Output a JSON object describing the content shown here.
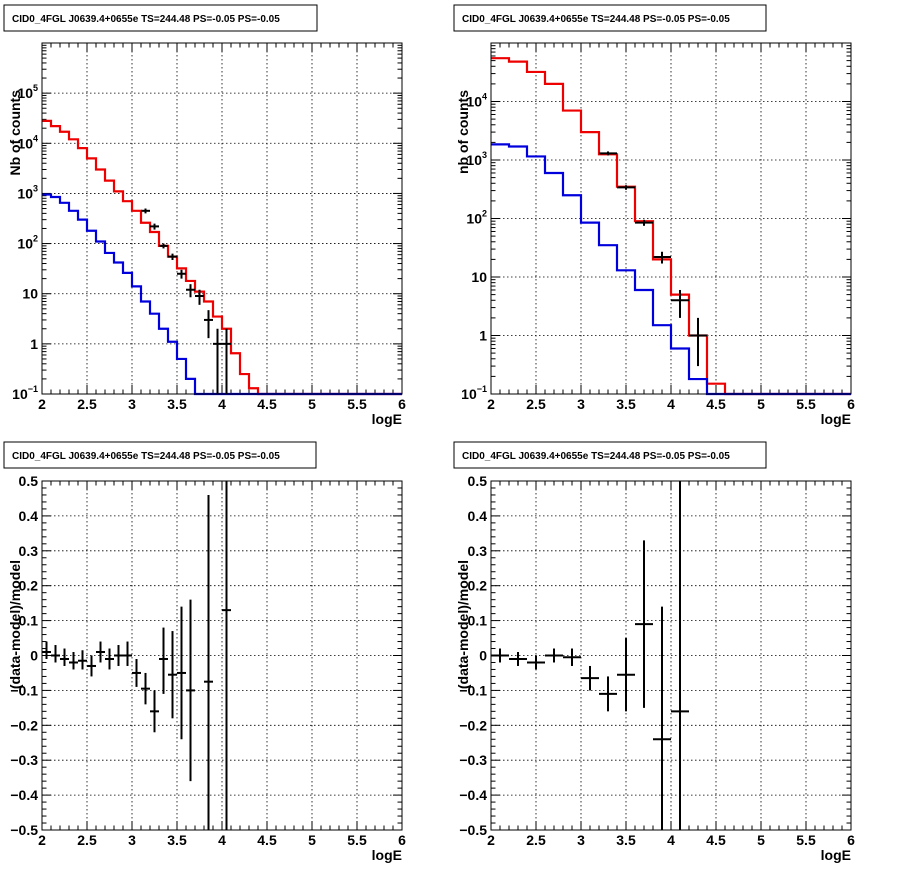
{
  "colors": {
    "model": "#ee0000",
    "component": "#0000dd",
    "data": "#000000"
  },
  "chart_data": [
    {
      "type": "line",
      "title": "CID0_4FGL J0639.4+0655e TS=244.48 PS=-0.05 PS=-0.05",
      "xlabel": "logE",
      "ylabel": "Nb of counts",
      "ylog": true,
      "xlim": [
        2,
        6
      ],
      "ylim": [
        0.1,
        1000000
      ],
      "grid": true,
      "xticks": [
        "2",
        "2.5",
        "3",
        "3.5",
        "4",
        "4.5",
        "5",
        "5.5",
        "6"
      ],
      "yticks": [
        {
          "v": 0.1,
          "label": "10",
          "exp": "−1"
        },
        {
          "v": 1,
          "label": "1"
        },
        {
          "v": 10,
          "label": "10"
        },
        {
          "v": 100,
          "label": "10",
          "exp": "2"
        },
        {
          "v": 1000,
          "label": "10",
          "exp": "3"
        },
        {
          "v": 10000,
          "label": "10",
          "exp": "4"
        },
        {
          "v": 100000,
          "label": "10",
          "exp": "5"
        }
      ],
      "series": [
        {
          "role": "model",
          "color": "#ee0000",
          "edges": [
            2,
            2.1,
            2.2,
            2.3,
            2.4,
            2.5,
            2.6,
            2.7,
            2.8,
            2.9,
            3,
            3.1,
            3.2,
            3.3,
            3.4,
            3.5,
            3.6,
            3.7,
            3.8,
            3.9,
            4,
            4.1,
            4.2,
            4.3,
            4.4,
            4.5,
            4.6,
            4.7,
            4.8,
            4.9,
            5,
            5.1,
            5.2,
            5.3,
            5.4,
            5.5,
            5.6,
            5.7,
            5.8,
            5.9,
            6
          ],
          "values": [
            28000,
            22000,
            17000,
            12000,
            8000,
            5000,
            3000,
            1800,
            1100,
            700,
            450,
            260,
            170,
            90,
            55,
            32,
            18,
            11,
            7,
            3.5,
            2,
            0.65,
            0.25,
            0.13,
            0.1,
            0.1,
            0.1,
            0.1,
            0.1,
            0.1,
            0.1,
            0.1,
            0.1,
            0.1,
            0.1,
            0.1,
            0.1,
            0.1,
            0.1,
            0.1
          ]
        },
        {
          "role": "component",
          "color": "#0000dd",
          "edges": [
            2,
            2.1,
            2.2,
            2.3,
            2.4,
            2.5,
            2.6,
            2.7,
            2.8,
            2.9,
            3,
            3.1,
            3.2,
            3.3,
            3.4,
            3.5,
            3.6,
            3.7,
            3.8,
            3.9,
            4,
            4.1,
            4.2,
            4.3,
            4.4,
            4.5,
            4.6,
            4.7,
            4.8,
            4.9,
            5,
            5.1,
            5.2,
            5.3,
            5.4,
            5.5,
            5.6,
            5.7,
            5.8,
            5.9,
            6
          ],
          "values": [
            950,
            850,
            650,
            450,
            300,
            180,
            110,
            65,
            42,
            26,
            14,
            7,
            4,
            2,
            1.1,
            0.5,
            0.2,
            0.1,
            0.1,
            0.1,
            0.1,
            0.1,
            0.1,
            0.1,
            0.1,
            0.1,
            0.1,
            0.1,
            0.1,
            0.1,
            0.1,
            0.1,
            0.1,
            0.1,
            0.1,
            0.1,
            0.1,
            0.1,
            0.1,
            0.1
          ]
        }
      ],
      "points": [
        {
          "x": 3.15,
          "y": 450,
          "xe": 0.05,
          "yl": 400,
          "yh": 500
        },
        {
          "x": 3.25,
          "y": 220,
          "xe": 0.05,
          "yl": 190,
          "yh": 250
        },
        {
          "x": 3.35,
          "y": 90,
          "xe": 0.05,
          "yl": 80,
          "yh": 100
        },
        {
          "x": 3.45,
          "y": 55,
          "xe": 0.05,
          "yl": 47,
          "yh": 63
        },
        {
          "x": 3.55,
          "y": 25,
          "xe": 0.05,
          "yl": 20,
          "yh": 30
        },
        {
          "x": 3.65,
          "y": 12,
          "xe": 0.05,
          "yl": 8.5,
          "yh": 15.5
        },
        {
          "x": 3.75,
          "y": 9,
          "xe": 0.05,
          "yl": 6,
          "yh": 12
        },
        {
          "x": 3.85,
          "y": 3,
          "xe": 0.05,
          "yl": 1.3,
          "yh": 4.7
        },
        {
          "x": 3.95,
          "y": 1,
          "xe": 0.05,
          "yl": 0.1,
          "yh": 2
        },
        {
          "x": 4.05,
          "y": 1,
          "xe": 0.05,
          "yl": 0.1,
          "yh": 2
        }
      ]
    },
    {
      "type": "line",
      "title": "CID0_4FGL J0639.4+0655e TS=244.48 PS=-0.05 PS=-0.05",
      "xlabel": "logE",
      "ylabel": "nb of counts",
      "ylog": true,
      "xlim": [
        2,
        6
      ],
      "ylim": [
        0.1,
        100000
      ],
      "grid": true,
      "xticks": [
        "2",
        "2.5",
        "3",
        "3.5",
        "4",
        "4.5",
        "5",
        "5.5",
        "6"
      ],
      "yticks": [
        {
          "v": 0.1,
          "label": "10",
          "exp": "−1"
        },
        {
          "v": 1,
          "label": "1"
        },
        {
          "v": 10,
          "label": "10"
        },
        {
          "v": 100,
          "label": "10",
          "exp": "2"
        },
        {
          "v": 1000,
          "label": "10",
          "exp": "3"
        },
        {
          "v": 10000,
          "label": "10",
          "exp": "4"
        }
      ],
      "series": [
        {
          "role": "model",
          "color": "#ee0000",
          "edges": [
            2,
            2.2,
            2.4,
            2.6,
            2.8,
            3,
            3.2,
            3.4,
            3.6,
            3.8,
            4,
            4.2,
            4.4,
            4.6,
            4.8,
            5,
            5.2,
            5.4,
            5.6,
            5.8,
            6
          ],
          "values": [
            55000,
            48000,
            32000,
            20000,
            7000,
            3000,
            1250,
            350,
            90,
            20,
            5,
            1,
            0.15,
            0.1,
            0.1,
            0.1,
            0.1,
            0.1,
            0.1,
            0.1
          ]
        },
        {
          "role": "component",
          "color": "#0000dd",
          "edges": [
            2,
            2.2,
            2.4,
            2.6,
            2.8,
            3,
            3.2,
            3.4,
            3.6,
            3.8,
            4,
            4.2,
            4.4,
            4.6,
            4.8,
            5,
            5.2,
            5.4,
            5.6,
            5.8,
            6
          ],
          "values": [
            1850,
            1700,
            1150,
            600,
            250,
            85,
            35,
            13,
            6,
            1.5,
            0.6,
            0.18,
            0.1,
            0.1,
            0.1,
            0.1,
            0.1,
            0.1,
            0.1,
            0.1
          ]
        }
      ],
      "points": [
        {
          "x": 3.3,
          "y": 1300,
          "xe": 0.1,
          "yl": 1200,
          "yh": 1400
        },
        {
          "x": 3.5,
          "y": 340,
          "xe": 0.1,
          "yl": 310,
          "yh": 370
        },
        {
          "x": 3.7,
          "y": 85,
          "xe": 0.1,
          "yl": 75,
          "yh": 95
        },
        {
          "x": 3.9,
          "y": 22,
          "xe": 0.1,
          "yl": 17,
          "yh": 27
        },
        {
          "x": 4.1,
          "y": 4,
          "xe": 0.1,
          "yl": 2,
          "yh": 6
        },
        {
          "x": 4.3,
          "y": 1,
          "xe": 0.1,
          "yl": 0.3,
          "yh": 2
        }
      ]
    },
    {
      "type": "scatter",
      "title": "CID0_4FGL J0639.4+0655e TS=244.48 PS=-0.05 PS=-0.05",
      "xlabel": "logE",
      "ylabel": "(data-model)/model",
      "ylog": false,
      "xlim": [
        2,
        6
      ],
      "ylim": [
        -0.5,
        0.5
      ],
      "grid": true,
      "xticks": [
        "2",
        "2.5",
        "3",
        "3.5",
        "4",
        "4.5",
        "5",
        "5.5",
        "6"
      ],
      "yticks": [
        {
          "v": -0.5,
          "label": "−0.5"
        },
        {
          "v": -0.4,
          "label": "−0.4"
        },
        {
          "v": -0.3,
          "label": "−0.3"
        },
        {
          "v": -0.2,
          "label": "−0.2"
        },
        {
          "v": -0.1,
          "label": "−0.1"
        },
        {
          "v": 0,
          "label": "0"
        },
        {
          "v": 0.1,
          "label": "0.1"
        },
        {
          "v": 0.2,
          "label": "0.2"
        },
        {
          "v": 0.3,
          "label": "0.3"
        },
        {
          "v": 0.4,
          "label": "0.4"
        },
        {
          "v": 0.5,
          "label": "0.5"
        }
      ],
      "points": [
        {
          "x": 2.05,
          "y": 0.01,
          "xe": 0.05,
          "yl": -0.01,
          "yh": 0.04
        },
        {
          "x": 2.15,
          "y": 0.0,
          "xe": 0.05,
          "yl": -0.02,
          "yh": 0.03
        },
        {
          "x": 2.25,
          "y": -0.01,
          "xe": 0.05,
          "yl": -0.03,
          "yh": 0.02
        },
        {
          "x": 2.35,
          "y": -0.02,
          "xe": 0.05,
          "yl": -0.04,
          "yh": 0.01
        },
        {
          "x": 2.45,
          "y": -0.015,
          "xe": 0.05,
          "yl": -0.04,
          "yh": 0.015
        },
        {
          "x": 2.55,
          "y": -0.03,
          "xe": 0.05,
          "yl": -0.06,
          "yh": 0.0
        },
        {
          "x": 2.65,
          "y": 0.01,
          "xe": 0.05,
          "yl": -0.02,
          "yh": 0.04
        },
        {
          "x": 2.75,
          "y": -0.01,
          "xe": 0.05,
          "yl": -0.04,
          "yh": 0.02
        },
        {
          "x": 2.85,
          "y": 0.0,
          "xe": 0.05,
          "yl": -0.03,
          "yh": 0.03
        },
        {
          "x": 2.95,
          "y": 0.0,
          "xe": 0.05,
          "yl": -0.03,
          "yh": 0.04
        },
        {
          "x": 3.05,
          "y": -0.05,
          "xe": 0.05,
          "yl": -0.09,
          "yh": -0.01
        },
        {
          "x": 3.15,
          "y": -0.095,
          "xe": 0.05,
          "yl": -0.14,
          "yh": -0.05
        },
        {
          "x": 3.25,
          "y": -0.16,
          "xe": 0.05,
          "yl": -0.22,
          "yh": -0.1
        },
        {
          "x": 3.35,
          "y": -0.01,
          "xe": 0.05,
          "yl": -0.11,
          "yh": 0.08
        },
        {
          "x": 3.45,
          "y": -0.055,
          "xe": 0.05,
          "yl": -0.18,
          "yh": 0.07
        },
        {
          "x": 3.55,
          "y": -0.05,
          "xe": 0.05,
          "yl": -0.24,
          "yh": 0.14
        },
        {
          "x": 3.65,
          "y": -0.1,
          "xe": 0.05,
          "yl": -0.36,
          "yh": 0.16
        },
        {
          "x": 3.85,
          "y": -0.075,
          "xe": 0.05,
          "yl": -0.5,
          "yh": 0.46
        },
        {
          "x": 4.05,
          "y": 0.13,
          "xe": 0.05,
          "yl": -0.5,
          "yh": 0.5
        }
      ]
    },
    {
      "type": "scatter",
      "title": "CID0_4FGL J0639.4+0655e TS=244.48 PS=-0.05 PS=-0.05",
      "xlabel": "logE",
      "ylabel": "(data-model)/model",
      "ylog": false,
      "xlim": [
        2,
        6
      ],
      "ylim": [
        -0.5,
        0.5
      ],
      "grid": true,
      "xticks": [
        "2",
        "2.5",
        "3",
        "3.5",
        "4",
        "4.5",
        "5",
        "5.5",
        "6"
      ],
      "yticks": [
        {
          "v": -0.5,
          "label": "−0.5"
        },
        {
          "v": -0.4,
          "label": "−0.4"
        },
        {
          "v": -0.3,
          "label": "−0.3"
        },
        {
          "v": -0.2,
          "label": "−0.2"
        },
        {
          "v": -0.1,
          "label": "−0.1"
        },
        {
          "v": 0,
          "label": "0"
        },
        {
          "v": 0.1,
          "label": "0.1"
        },
        {
          "v": 0.2,
          "label": "0.2"
        },
        {
          "v": 0.3,
          "label": "0.3"
        },
        {
          "v": 0.4,
          "label": "0.4"
        },
        {
          "v": 0.5,
          "label": "0.5"
        }
      ],
      "points": [
        {
          "x": 2.1,
          "y": 0.0,
          "xe": 0.1,
          "yl": -0.02,
          "yh": 0.02
        },
        {
          "x": 2.3,
          "y": -0.01,
          "xe": 0.1,
          "yl": -0.03,
          "yh": 0.01
        },
        {
          "x": 2.5,
          "y": -0.02,
          "xe": 0.1,
          "yl": -0.04,
          "yh": 0.0
        },
        {
          "x": 2.7,
          "y": 0.0,
          "xe": 0.1,
          "yl": -0.02,
          "yh": 0.02
        },
        {
          "x": 2.9,
          "y": -0.005,
          "xe": 0.1,
          "yl": -0.03,
          "yh": 0.02
        },
        {
          "x": 3.1,
          "y": -0.065,
          "xe": 0.1,
          "yl": -0.1,
          "yh": -0.03
        },
        {
          "x": 3.3,
          "y": -0.11,
          "xe": 0.1,
          "yl": -0.16,
          "yh": -0.06
        },
        {
          "x": 3.5,
          "y": -0.055,
          "xe": 0.1,
          "yl": -0.16,
          "yh": 0.05
        },
        {
          "x": 3.7,
          "y": 0.09,
          "xe": 0.1,
          "yl": -0.15,
          "yh": 0.33
        },
        {
          "x": 3.9,
          "y": -0.24,
          "xe": 0.1,
          "yl": -0.5,
          "yh": 0.14
        },
        {
          "x": 4.1,
          "y": -0.16,
          "xe": 0.1,
          "yl": -0.5,
          "yh": 0.5
        }
      ]
    }
  ]
}
